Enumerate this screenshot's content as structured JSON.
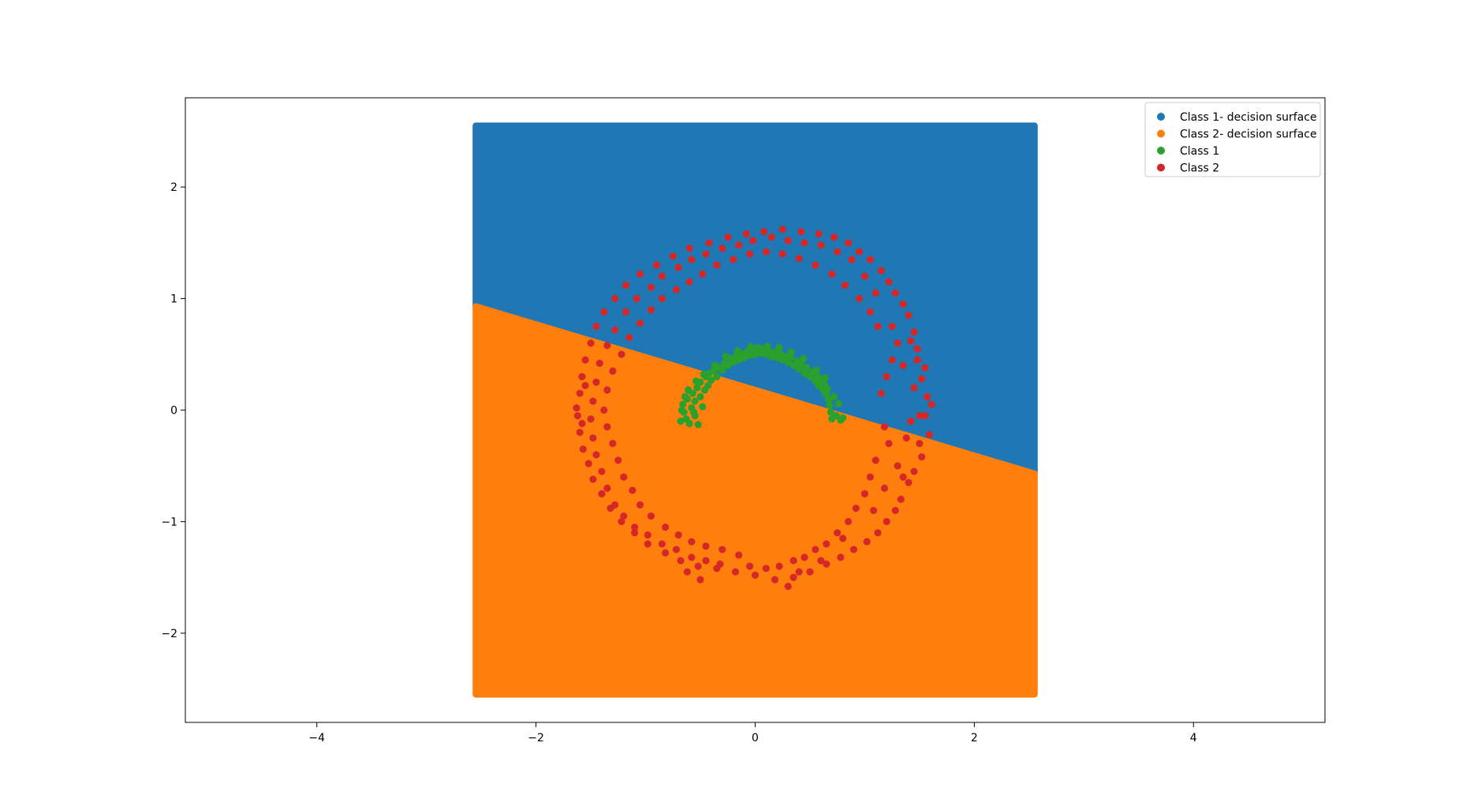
{
  "chart_data": {
    "type": "scatter",
    "title": "",
    "xlabel": "",
    "ylabel": "",
    "xlim": [
      -5.2,
      5.2
    ],
    "ylim": [
      -2.8,
      2.8
    ],
    "xticks": [
      -4,
      -2,
      0,
      2,
      4
    ],
    "yticks": [
      -2,
      -1,
      0,
      1,
      2
    ],
    "xtick_labels": [
      "−4",
      "−2",
      "0",
      "2",
      "4"
    ],
    "ytick_labels": [
      "−2",
      "−1",
      "0",
      "1",
      "2"
    ],
    "grid": false,
    "legend_position": "top-right",
    "decision_surface": {
      "x_range": [
        -2.55,
        2.55
      ],
      "y_range": [
        -2.55,
        2.55
      ],
      "boundary_line": {
        "x": [
          -2.55,
          2.55
        ],
        "y": [
          0.93,
          -0.57
        ]
      },
      "upper_class": "Class 1- decision surface",
      "lower_class": "Class 2- decision surface"
    },
    "series": [
      {
        "name": "Class 1- decision surface",
        "color": "#1f77b4",
        "kind": "region-upper"
      },
      {
        "name": "Class 2- decision surface",
        "color": "#ff7f0e",
        "kind": "region-lower"
      },
      {
        "name": "Class 1",
        "color": "#2ca02c",
        "kind": "points",
        "points": [
          [
            -0.68,
            -0.1
          ],
          [
            -0.65,
            -0.02
          ],
          [
            -0.66,
            0.05
          ],
          [
            -0.62,
            0.1
          ],
          [
            -0.6,
            -0.12
          ],
          [
            -0.58,
            0.02
          ],
          [
            -0.57,
            0.15
          ],
          [
            -0.55,
            0.08
          ],
          [
            -0.55,
            -0.05
          ],
          [
            -0.53,
            0.2
          ],
          [
            -0.52,
            -0.13
          ],
          [
            -0.5,
            0.12
          ],
          [
            -0.5,
            0.25
          ],
          [
            -0.48,
            0.03
          ],
          [
            -0.46,
            0.18
          ],
          [
            -0.45,
            0.3
          ],
          [
            -0.43,
            0.22
          ],
          [
            -0.42,
            0.33
          ],
          [
            -0.4,
            0.27
          ],
          [
            -0.38,
            0.35
          ],
          [
            -0.35,
            0.3
          ],
          [
            -0.33,
            0.38
          ],
          [
            -0.3,
            0.36
          ],
          [
            -0.28,
            0.42
          ],
          [
            -0.25,
            0.4
          ],
          [
            -0.22,
            0.46
          ],
          [
            -0.2,
            0.43
          ],
          [
            -0.18,
            0.48
          ],
          [
            -0.15,
            0.45
          ],
          [
            -0.12,
            0.5
          ],
          [
            -0.1,
            0.47
          ],
          [
            -0.08,
            0.52
          ],
          [
            -0.05,
            0.49
          ],
          [
            -0.02,
            0.55
          ],
          [
            0.0,
            0.5
          ],
          [
            0.03,
            0.56
          ],
          [
            0.05,
            0.51
          ],
          [
            0.08,
            0.55
          ],
          [
            0.1,
            0.5
          ],
          [
            0.12,
            0.53
          ],
          [
            0.15,
            0.48
          ],
          [
            0.18,
            0.52
          ],
          [
            0.2,
            0.47
          ],
          [
            0.23,
            0.5
          ],
          [
            0.25,
            0.45
          ],
          [
            0.28,
            0.48
          ],
          [
            0.3,
            0.43
          ],
          [
            0.32,
            0.47
          ],
          [
            0.35,
            0.4
          ],
          [
            0.38,
            0.44
          ],
          [
            0.4,
            0.37
          ],
          [
            0.42,
            0.41
          ],
          [
            0.45,
            0.33
          ],
          [
            0.47,
            0.38
          ],
          [
            0.5,
            0.3
          ],
          [
            0.52,
            0.34
          ],
          [
            0.55,
            0.26
          ],
          [
            0.57,
            0.3
          ],
          [
            0.58,
            0.22
          ],
          [
            0.6,
            0.27
          ],
          [
            0.62,
            0.18
          ],
          [
            0.63,
            0.23
          ],
          [
            0.65,
            0.14
          ],
          [
            0.66,
            0.19
          ],
          [
            0.67,
            0.09
          ],
          [
            0.68,
            0.04
          ],
          [
            0.69,
            -0.02
          ],
          [
            0.7,
            -0.08
          ],
          [
            0.72,
            0.12
          ],
          [
            0.74,
            -0.05
          ],
          [
            0.76,
            0.06
          ],
          [
            0.78,
            -0.09
          ],
          [
            0.8,
            -0.07
          ],
          [
            0.64,
            0.29
          ],
          [
            0.56,
            0.36
          ],
          [
            0.44,
            0.46
          ],
          [
            0.33,
            0.52
          ],
          [
            0.22,
            0.56
          ],
          [
            0.11,
            0.57
          ],
          [
            -0.04,
            0.57
          ],
          [
            -0.16,
            0.53
          ],
          [
            -0.27,
            0.48
          ],
          [
            -0.37,
            0.4
          ],
          [
            -0.47,
            0.32
          ],
          [
            -0.54,
            0.26
          ],
          [
            -0.61,
            0.18
          ],
          [
            -0.64,
            0.12
          ],
          [
            -0.67,
            0.0
          ],
          [
            -0.63,
            -0.08
          ],
          [
            -0.56,
            -0.02
          ]
        ]
      },
      {
        "name": "Class 2",
        "color": "#d62728",
        "kind": "points",
        "points": [
          [
            1.61,
            0.05
          ],
          [
            1.57,
            0.12
          ],
          [
            1.55,
            -0.05
          ],
          [
            1.59,
            -0.22
          ],
          [
            1.52,
            0.28
          ],
          [
            1.55,
            0.38
          ],
          [
            1.5,
            -0.3
          ],
          [
            1.48,
            0.55
          ],
          [
            1.52,
            -0.42
          ],
          [
            1.45,
            0.7
          ],
          [
            1.45,
            -0.55
          ],
          [
            1.4,
            0.85
          ],
          [
            1.4,
            -0.65
          ],
          [
            1.35,
            0.95
          ],
          [
            1.33,
            -0.8
          ],
          [
            1.28,
            1.05
          ],
          [
            1.28,
            -0.9
          ],
          [
            1.22,
            1.15
          ],
          [
            1.2,
            -1.0
          ],
          [
            1.15,
            1.25
          ],
          [
            1.12,
            -1.1
          ],
          [
            1.05,
            1.35
          ],
          [
            1.02,
            -1.18
          ],
          [
            0.95,
            1.42
          ],
          [
            0.9,
            -1.25
          ],
          [
            0.85,
            1.5
          ],
          [
            0.78,
            -1.32
          ],
          [
            0.72,
            1.55
          ],
          [
            0.65,
            -1.38
          ],
          [
            0.58,
            1.58
          ],
          [
            0.5,
            -1.45
          ],
          [
            0.42,
            1.6
          ],
          [
            0.35,
            -1.5
          ],
          [
            0.25,
            1.62
          ],
          [
            0.18,
            -1.52
          ],
          [
            0.08,
            1.6
          ],
          [
            0.0,
            -1.48
          ],
          [
            -0.08,
            1.58
          ],
          [
            -0.18,
            -1.45
          ],
          [
            -0.25,
            1.55
          ],
          [
            -0.35,
            -1.42
          ],
          [
            -0.42,
            1.5
          ],
          [
            -0.52,
            -1.4
          ],
          [
            -0.6,
            1.45
          ],
          [
            -0.68,
            -1.35
          ],
          [
            -0.75,
            1.38
          ],
          [
            -0.82,
            -1.28
          ],
          [
            -0.9,
            1.3
          ],
          [
            -0.98,
            -1.2
          ],
          [
            -1.05,
            1.22
          ],
          [
            -1.1,
            -1.1
          ],
          [
            -1.18,
            1.12
          ],
          [
            -1.22,
            -1.0
          ],
          [
            -1.28,
            1.0
          ],
          [
            -1.32,
            -0.88
          ],
          [
            -1.38,
            0.88
          ],
          [
            -1.4,
            -0.75
          ],
          [
            -1.45,
            0.75
          ],
          [
            -1.48,
            -0.62
          ],
          [
            -1.5,
            0.6
          ],
          [
            -1.52,
            -0.48
          ],
          [
            -1.55,
            0.45
          ],
          [
            -1.57,
            -0.35
          ],
          [
            -1.58,
            0.3
          ],
          [
            -1.6,
            -0.2
          ],
          [
            -1.6,
            0.15
          ],
          [
            -1.62,
            -0.05
          ],
          [
            -1.63,
            0.02
          ],
          [
            -1.58,
            -0.12
          ],
          [
            -1.55,
            0.22
          ],
          [
            1.3,
            0.6
          ],
          [
            1.25,
            0.45
          ],
          [
            1.2,
            0.3
          ],
          [
            1.15,
            0.15
          ],
          [
            1.18,
            -0.15
          ],
          [
            1.22,
            -0.3
          ],
          [
            1.1,
            -0.45
          ],
          [
            1.05,
            -0.6
          ],
          [
            1.0,
            -0.75
          ],
          [
            0.92,
            -0.88
          ],
          [
            0.85,
            -1.0
          ],
          [
            0.75,
            -1.1
          ],
          [
            0.65,
            -1.2
          ],
          [
            0.55,
            -1.25
          ],
          [
            0.45,
            -1.32
          ],
          [
            0.35,
            -1.35
          ],
          [
            0.22,
            -1.4
          ],
          [
            0.1,
            -1.42
          ],
          [
            -0.05,
            -1.4
          ],
          [
            -0.15,
            -1.3
          ],
          [
            -0.3,
            -1.25
          ],
          [
            -0.45,
            -1.22
          ],
          [
            -0.58,
            -1.18
          ],
          [
            -0.7,
            -1.12
          ],
          [
            -0.82,
            -1.05
          ],
          [
            -0.95,
            -0.95
          ],
          [
            -1.05,
            -0.85
          ],
          [
            -1.12,
            -0.72
          ],
          [
            -1.2,
            -0.6
          ],
          [
            -1.25,
            -0.45
          ],
          [
            -1.3,
            -0.3
          ],
          [
            -1.35,
            -0.15
          ],
          [
            -1.38,
            0.0
          ],
          [
            -1.35,
            0.18
          ],
          [
            -1.3,
            0.35
          ],
          [
            -1.22,
            0.5
          ],
          [
            -1.15,
            0.65
          ],
          [
            -1.05,
            0.78
          ],
          [
            -0.95,
            0.9
          ],
          [
            -0.85,
            1.0
          ],
          [
            -0.72,
            1.08
          ],
          [
            -0.6,
            1.15
          ],
          [
            -0.48,
            1.22
          ],
          [
            -0.35,
            1.3
          ],
          [
            -0.2,
            1.35
          ],
          [
            -0.05,
            1.4
          ],
          [
            0.1,
            1.42
          ],
          [
            0.25,
            1.4
          ],
          [
            0.4,
            1.36
          ],
          [
            0.55,
            1.3
          ],
          [
            0.7,
            1.22
          ],
          [
            0.82,
            1.12
          ],
          [
            0.95,
            1.0
          ],
          [
            1.05,
            0.88
          ],
          [
            1.12,
            0.75
          ],
          [
            1.45,
            0.2
          ],
          [
            1.42,
            -0.1
          ],
          [
            1.38,
            -0.25
          ],
          [
            1.35,
            0.4
          ],
          [
            1.3,
            -0.5
          ],
          [
            1.25,
            0.75
          ],
          [
            1.18,
            -0.7
          ],
          [
            1.1,
            1.05
          ],
          [
            1.0,
            1.2
          ],
          [
            0.88,
            1.35
          ],
          [
            0.75,
            1.42
          ],
          [
            0.6,
            1.48
          ],
          [
            0.45,
            1.5
          ],
          [
            0.3,
            1.52
          ],
          [
            0.15,
            1.55
          ],
          [
            -0.02,
            1.52
          ],
          [
            -0.15,
            1.48
          ],
          [
            -0.3,
            1.45
          ],
          [
            -0.45,
            1.4
          ],
          [
            -0.58,
            1.35
          ],
          [
            -0.7,
            1.28
          ],
          [
            -0.85,
            1.2
          ],
          [
            -0.95,
            1.1
          ],
          [
            -1.08,
            1.0
          ],
          [
            -1.18,
            0.88
          ],
          [
            -1.28,
            0.72
          ],
          [
            -1.35,
            0.58
          ],
          [
            -1.42,
            0.42
          ],
          [
            -1.45,
            0.25
          ],
          [
            -1.48,
            0.08
          ],
          [
            -1.5,
            -0.08
          ],
          [
            -1.48,
            -0.25
          ],
          [
            -1.45,
            -0.4
          ],
          [
            -1.4,
            -0.55
          ],
          [
            -1.35,
            -0.7
          ],
          [
            -1.28,
            -0.85
          ],
          [
            -1.2,
            -0.95
          ],
          [
            -1.1,
            -1.05
          ],
          [
            -0.98,
            -1.12
          ],
          [
            -0.85,
            -1.2
          ],
          [
            -0.72,
            -1.25
          ],
          [
            -0.58,
            -1.32
          ],
          [
            -0.45,
            -1.35
          ],
          [
            -0.32,
            -1.38
          ],
          [
            0.3,
            -1.58
          ],
          [
            0.4,
            -1.45
          ],
          [
            0.6,
            -1.35
          ],
          [
            0.8,
            -1.15
          ],
          [
            1.08,
            -0.9
          ],
          [
            1.35,
            -0.6
          ],
          [
            1.5,
            -0.05
          ],
          [
            1.48,
            0.45
          ],
          [
            1.42,
            0.62
          ],
          [
            -0.5,
            -1.52
          ],
          [
            -0.62,
            -1.45
          ]
        ]
      }
    ]
  }
}
